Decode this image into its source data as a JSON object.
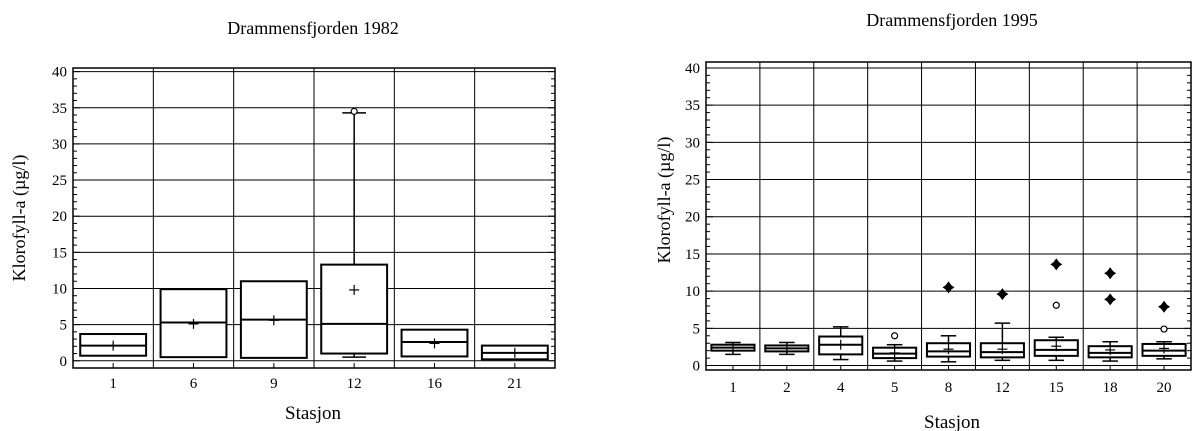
{
  "chart_data": [
    {
      "type": "box",
      "title": "Drammensfjorden 1982",
      "xlabel": "Stasjon",
      "ylabel": "Klorofyll-a (µg/l)",
      "ylim": [
        -1,
        40.5
      ],
      "yticks": [
        0,
        5,
        10,
        15,
        20,
        25,
        30,
        35,
        40
      ],
      "grid": true,
      "categories": [
        "1",
        "6",
        "9",
        "12",
        "16",
        "21"
      ],
      "boxes": [
        {
          "q1": 0.7,
          "median": 2.1,
          "q3": 3.7,
          "mean": 2.1
        },
        {
          "q1": 0.5,
          "median": 5.3,
          "q3": 9.9,
          "mean": 5.1
        },
        {
          "q1": 0.4,
          "median": 5.7,
          "q3": 11.0,
          "mean": 5.6
        },
        {
          "q1": 1.0,
          "median": 5.1,
          "q3": 13.3,
          "mean": 9.8,
          "whisker_low": 0.5,
          "whisker_high": 34.3,
          "outliers": [
            34.5
          ]
        },
        {
          "q1": 0.6,
          "median": 2.6,
          "q3": 4.3,
          "mean": 2.4
        },
        {
          "q1": 0.2,
          "median": 1.1,
          "q3": 2.1,
          "mean": 1.1
        }
      ]
    },
    {
      "type": "box",
      "title": "Drammensfjorden 1995",
      "xlabel": "Stasjon",
      "ylabel": "Klorofyll-a (µg/l)",
      "ylim": [
        -0.6,
        40.8
      ],
      "yticks": [
        0,
        5,
        10,
        15,
        20,
        25,
        30,
        35,
        40
      ],
      "grid": true,
      "categories": [
        "1",
        "2",
        "4",
        "5",
        "8",
        "12",
        "15",
        "18",
        "20"
      ],
      "boxes": [
        {
          "q1": 2.0,
          "median": 2.4,
          "q3": 2.8,
          "mean": 2.4,
          "whisker_low": 1.5,
          "whisker_high": 3.1
        },
        {
          "q1": 1.9,
          "median": 2.3,
          "q3": 2.7,
          "mean": 2.3,
          "whisker_low": 1.5,
          "whisker_high": 3.1
        },
        {
          "q1": 1.5,
          "median": 2.8,
          "q3": 3.9,
          "mean": 2.8,
          "whisker_low": 0.8,
          "whisker_high": 5.2
        },
        {
          "q1": 1.0,
          "median": 1.6,
          "q3": 2.4,
          "mean": 1.7,
          "whisker_low": 0.6,
          "whisker_high": 2.8,
          "outliers": [
            4.0
          ]
        },
        {
          "q1": 1.2,
          "median": 1.9,
          "q3": 3.0,
          "mean": 2.2,
          "whisker_low": 0.5,
          "whisker_high": 4.0,
          "extremes": [
            10.5
          ]
        },
        {
          "q1": 1.1,
          "median": 1.8,
          "q3": 3.0,
          "mean": 2.2,
          "whisker_low": 0.7,
          "whisker_high": 5.7,
          "extremes": [
            9.6
          ]
        },
        {
          "q1": 1.3,
          "median": 2.1,
          "q3": 3.4,
          "mean": 2.6,
          "whisker_low": 0.7,
          "whisker_high": 3.8,
          "outliers": [
            8.1
          ],
          "extremes": [
            13.6
          ]
        },
        {
          "q1": 1.1,
          "median": 1.7,
          "q3": 2.6,
          "mean": 2.1,
          "whisker_low": 0.6,
          "whisker_high": 3.2,
          "extremes": [
            8.9,
            12.4
          ]
        },
        {
          "q1": 1.3,
          "median": 2.0,
          "q3": 2.9,
          "mean": 2.3,
          "whisker_low": 0.9,
          "whisker_high": 3.2,
          "outliers": [
            4.9
          ],
          "extremes": [
            7.9
          ]
        }
      ]
    }
  ]
}
